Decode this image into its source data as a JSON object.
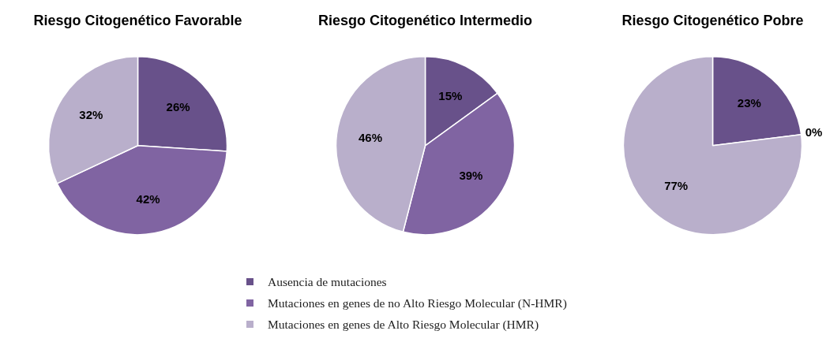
{
  "chart_data": [
    {
      "type": "pie",
      "title": "Riesgo Citogenético Favorable",
      "categories": [
        null,
        null,
        null
      ],
      "values": [
        26,
        42,
        32
      ],
      "value_labels": [
        "26%",
        "42%",
        "32%"
      ],
      "colors": [
        "#68518a",
        "#8064a2",
        "#b9afcb"
      ],
      "legend": false
    },
    {
      "type": "pie",
      "title": "Riesgo Citogenético Intermedio",
      "categories": [
        "Ausencia de mutaciones",
        "Mutaciones en genes de no Alto Riesgo Molecular (N-HMR)",
        "Mutaciones en genes de Alto Riesgo Molecular (HMR)"
      ],
      "values": [
        15,
        39,
        46
      ],
      "value_labels": [
        "15%",
        "39%",
        "46%"
      ],
      "colors": [
        "#68518a",
        "#8064a2",
        "#b9afcb"
      ],
      "legend": "bottom"
    },
    {
      "type": "pie",
      "title": "Riesgo Citogenético Pobre",
      "categories": [
        null,
        null,
        null
      ],
      "values": [
        23,
        0,
        77
      ],
      "value_labels": [
        "23%",
        "0%",
        "77%"
      ],
      "colors": [
        "#68518a",
        "#8064a2",
        "#b9afcb"
      ],
      "legend": false
    }
  ]
}
